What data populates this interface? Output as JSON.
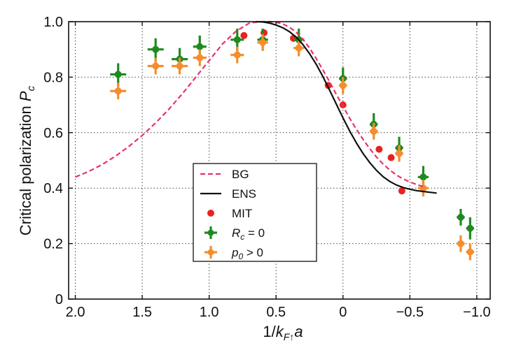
{
  "chart_data": {
    "type": "scatter",
    "title": "",
    "xlabel": "1/k_F↑a",
    "ylabel": "Critical polarization P_c",
    "xlim": [
      2.05,
      -1.1
    ],
    "ylim": [
      0,
      1.0
    ],
    "x_reversed": true,
    "xticks": [
      2.0,
      1.5,
      1.0,
      0.5,
      0,
      -0.5,
      -1.0
    ],
    "xtick_labels": [
      "2.0",
      "1.5",
      "1.0",
      "0.5",
      "0",
      "−0.5",
      "−1.0"
    ],
    "yticks": [
      0,
      0.2,
      0.4,
      0.6,
      0.8,
      1.0
    ],
    "ytick_labels": [
      "0",
      "0.2",
      "0.4",
      "0.6",
      "0.8",
      "1.0"
    ],
    "grid": true,
    "legend_position": "lower-center",
    "series": [
      {
        "name": "BG",
        "kind": "line",
        "style": "dashed",
        "color": "#e8336a",
        "x": [
          2.0,
          1.9,
          1.8,
          1.7,
          1.6,
          1.5,
          1.4,
          1.3,
          1.2,
          1.1,
          1.0,
          0.9,
          0.8,
          0.7,
          0.62,
          0.55,
          0.5,
          0.45,
          0.4,
          0.35,
          0.3,
          0.25,
          0.2,
          0.15,
          0.1,
          0.05,
          0.0,
          -0.05,
          -0.1,
          -0.15,
          -0.2,
          -0.25,
          -0.3,
          -0.35,
          -0.4,
          -0.45,
          -0.5,
          -0.55,
          -0.6
        ],
        "y": [
          0.44,
          0.46,
          0.485,
          0.515,
          0.55,
          0.59,
          0.635,
          0.685,
          0.74,
          0.8,
          0.86,
          0.92,
          0.965,
          0.995,
          1.0,
          1.0,
          0.998,
          0.992,
          0.98,
          0.962,
          0.937,
          0.905,
          0.867,
          0.826,
          0.783,
          0.738,
          0.695,
          0.652,
          0.612,
          0.576,
          0.542,
          0.512,
          0.487,
          0.465,
          0.447,
          0.433,
          0.422,
          0.413,
          0.405
        ]
      },
      {
        "name": "ENS",
        "kind": "line",
        "style": "solid",
        "color": "#111111",
        "x": [
          0.65,
          0.6,
          0.55,
          0.5,
          0.45,
          0.4,
          0.35,
          0.3,
          0.25,
          0.2,
          0.15,
          0.1,
          0.05,
          0.0,
          -0.05,
          -0.1,
          -0.15,
          -0.2,
          -0.25,
          -0.3,
          -0.35,
          -0.4,
          -0.45,
          -0.5,
          -0.55,
          -0.6,
          -0.65,
          -0.7
        ],
        "y": [
          1.0,
          0.999,
          0.995,
          0.988,
          0.978,
          0.964,
          0.944,
          0.918,
          0.885,
          0.846,
          0.802,
          0.753,
          0.703,
          0.653,
          0.606,
          0.563,
          0.525,
          0.492,
          0.464,
          0.441,
          0.424,
          0.411,
          0.402,
          0.396,
          0.391,
          0.388,
          0.385,
          0.382
        ]
      },
      {
        "name": "MIT",
        "kind": "points",
        "marker": "circle",
        "color": "#e8231f",
        "x": [
          0.74,
          0.59,
          0.37,
          0.11,
          0.0,
          -0.27,
          -0.36,
          -0.44
        ],
        "y": [
          0.95,
          0.96,
          0.94,
          0.77,
          0.7,
          0.54,
          0.51,
          0.39
        ]
      },
      {
        "name": "R_c = 0",
        "kind": "points",
        "marker": "plus-errorbar",
        "color": "#1f8a1f",
        "x": [
          1.68,
          1.4,
          1.22,
          1.07,
          0.79,
          0.6,
          0.33,
          0.0,
          -0.23,
          -0.42,
          -0.6,
          -0.88,
          -0.95
        ],
        "y": [
          0.81,
          0.9,
          0.865,
          0.91,
          0.935,
          0.935,
          0.935,
          0.795,
          0.63,
          0.545,
          0.44,
          0.295,
          0.255
        ],
        "xerr": [
          0.06,
          0.06,
          0.06,
          0.05,
          0.05,
          0.04,
          0.04,
          0.03,
          0.03,
          0.03,
          0.04,
          0.03,
          0.03
        ],
        "yerr": [
          0.04,
          0.04,
          0.04,
          0.04,
          0.04,
          0.04,
          0.04,
          0.04,
          0.04,
          0.04,
          0.04,
          0.03,
          0.04
        ]
      },
      {
        "name": "p_0 > 0",
        "kind": "points",
        "marker": "plus-errorbar",
        "color": "#f58d2c",
        "x": [
          1.68,
          1.4,
          1.22,
          1.07,
          0.79,
          0.6,
          0.33,
          0.0,
          -0.23,
          -0.42,
          -0.6,
          -0.88,
          -0.95
        ],
        "y": [
          0.75,
          0.84,
          0.84,
          0.87,
          0.88,
          0.925,
          0.905,
          0.77,
          0.605,
          0.525,
          0.4,
          0.2,
          0.17
        ],
        "xerr": [
          0.06,
          0.06,
          0.06,
          0.05,
          0.05,
          0.04,
          0.04,
          0.03,
          0.03,
          0.03,
          0.04,
          0.03,
          0.03
        ],
        "yerr": [
          0.03,
          0.03,
          0.03,
          0.03,
          0.03,
          0.03,
          0.03,
          0.03,
          0.03,
          0.03,
          0.03,
          0.03,
          0.03
        ]
      }
    ]
  }
}
